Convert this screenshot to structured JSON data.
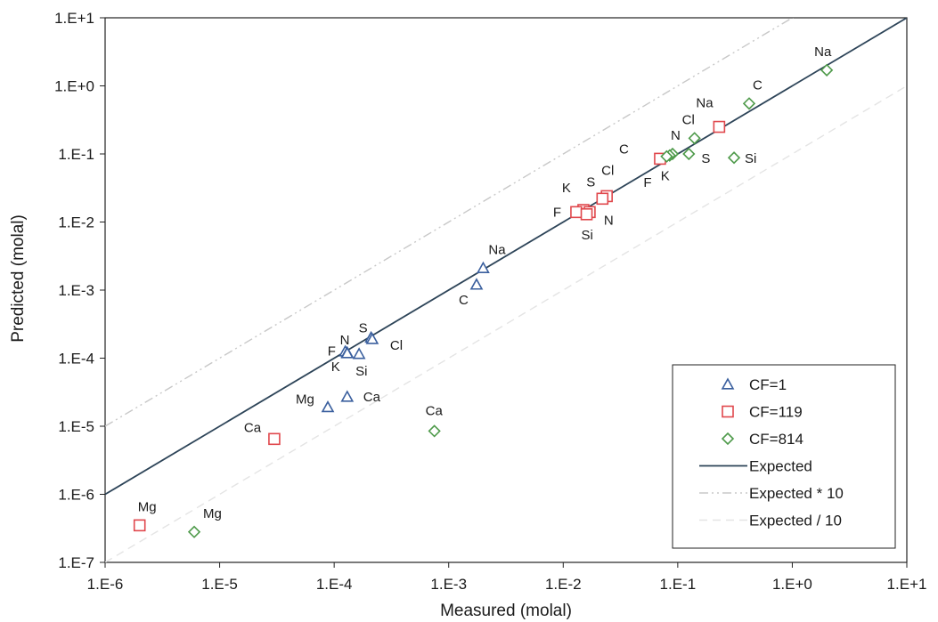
{
  "chart_data": {
    "type": "scatter",
    "x_scale": "log",
    "y_scale": "log",
    "xlim": [
      1e-06,
      10
    ],
    "ylim": [
      1e-07,
      10
    ],
    "xlabel": "Measured (molal)",
    "ylabel": "Predicted (molal)",
    "x_ticks": [
      1e-06,
      1e-05,
      0.0001,
      0.001,
      0.01,
      0.1,
      1,
      10
    ],
    "x_tick_labels": [
      "1.E-6",
      "1.E-5",
      "1.E-4",
      "1.E-3",
      "1.E-2",
      "1.E-1",
      "1.E+0",
      "1.E+1"
    ],
    "y_ticks": [
      1e-07,
      1e-06,
      1e-05,
      0.0001,
      0.001,
      0.01,
      0.1,
      1,
      10
    ],
    "y_tick_labels": [
      "1.E-7",
      "1.E-6",
      "1.E-5",
      "1.E-4",
      "1.E-3",
      "1.E-2",
      "1.E-1",
      "1.E+0",
      "1.E+1"
    ],
    "grid": false,
    "legend_position": "bottom-right",
    "series": [
      {
        "name": "CF=1",
        "marker": "triangle",
        "color": "#3a5f9e",
        "points": [
          {
            "label": "Na",
            "x": 0.002,
            "y": 0.0021
          },
          {
            "label": "C",
            "x": 0.00175,
            "y": 0.0012
          },
          {
            "label": "S",
            "x": 0.00021,
            "y": 0.0002
          },
          {
            "label": "Cl",
            "x": 0.000215,
            "y": 0.00019
          },
          {
            "label": "N",
            "x": 0.000125,
            "y": 0.000125
          },
          {
            "label": "F",
            "x": 0.00013,
            "y": 0.00012
          },
          {
            "label": "Si",
            "x": 0.000165,
            "y": 0.000115
          },
          {
            "label": "K",
            "x": 0.00013,
            "y": 0.000118
          },
          {
            "label": "Ca",
            "x": 0.00013,
            "y": 2.7e-05
          },
          {
            "label": "Mg",
            "x": 8.8e-05,
            "y": 1.9e-05
          }
        ]
      },
      {
        "name": "CF=119",
        "marker": "square",
        "color": "#e0474c",
        "points": [
          {
            "label": "Na",
            "x": 0.23,
            "y": 0.25
          },
          {
            "label": "C",
            "x": 0.07,
            "y": 0.085
          },
          {
            "label": "Cl",
            "x": 0.024,
            "y": 0.024
          },
          {
            "label": "S",
            "x": 0.022,
            "y": 0.022
          },
          {
            "label": "K",
            "x": 0.015,
            "y": 0.015
          },
          {
            "label": "F",
            "x": 0.013,
            "y": 0.014
          },
          {
            "label": "N",
            "x": 0.017,
            "y": 0.014
          },
          {
            "label": "Si",
            "x": 0.016,
            "y": 0.013
          },
          {
            "label": "Ca",
            "x": 3e-05,
            "y": 6.5e-06
          },
          {
            "label": "Mg",
            "x": 2e-06,
            "y": 3.5e-07
          }
        ]
      },
      {
        "name": "CF=814",
        "marker": "diamond",
        "color": "#4e9a4a",
        "points": [
          {
            "label": "Na",
            "x": 2.0,
            "y": 1.7
          },
          {
            "label": "C",
            "x": 0.42,
            "y": 0.55
          },
          {
            "label": "Cl",
            "x": 0.14,
            "y": 0.17
          },
          {
            "label": "N",
            "x": 0.09,
            "y": 0.1
          },
          {
            "label": "S",
            "x": 0.125,
            "y": 0.1
          },
          {
            "label": "K",
            "x": 0.085,
            "y": 0.095
          },
          {
            "label": "F",
            "x": 0.08,
            "y": 0.092
          },
          {
            "label": "Si",
            "x": 0.31,
            "y": 0.088
          },
          {
            "label": "Ca",
            "x": 0.00075,
            "y": 8.5e-06
          },
          {
            "label": "Mg",
            "x": 6e-06,
            "y": 2.8e-07
          }
        ]
      }
    ],
    "lines": [
      {
        "name": "Expected",
        "factor": 1,
        "color": "#2d4458",
        "style": "solid"
      },
      {
        "name": "Expected * 10",
        "factor": 10,
        "color": "#c8c8c8",
        "style": "dash-dot-dot"
      },
      {
        "name": "Expected / 10",
        "factor": 0.1,
        "color": "#e4e4e4",
        "style": "dash"
      }
    ]
  }
}
